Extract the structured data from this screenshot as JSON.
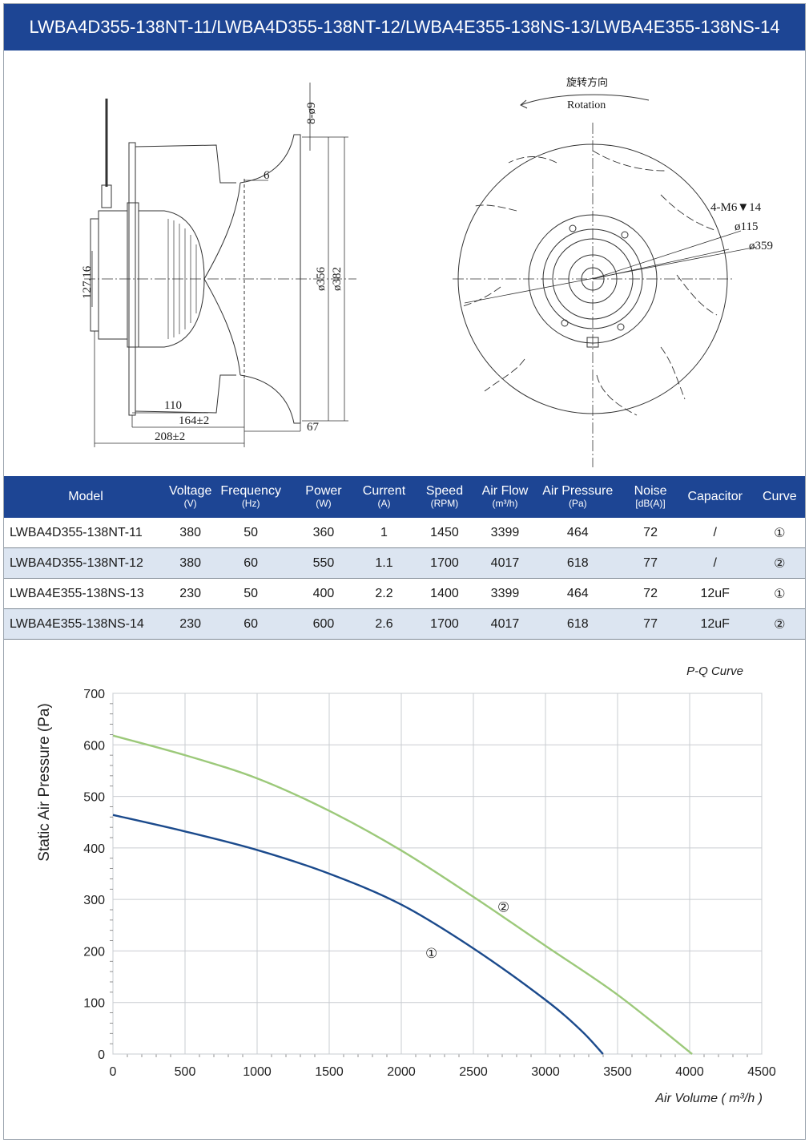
{
  "title": "LWBA4D355-138NT-11/LWBA4D355-138NT-12/LWBA4E355-138NS-13/LWBA4E355-138NS-14",
  "drawing": {
    "dim_holes": "8-ø9",
    "dim_6": "6",
    "dim_127": "127.16",
    "dim_356": "ø356",
    "dim_382": "ø382",
    "dim_110": "110",
    "dim_164": "164±2",
    "dim_208": "208±2",
    "dim_67": "67",
    "rotation_cn": "旋转方向",
    "rotation_en": "Rotation",
    "dim_m6": "4-M6▼14",
    "dim_115": "ø115",
    "dim_359": "ø359"
  },
  "table": {
    "headers": [
      {
        "label": "Model",
        "unit": ""
      },
      {
        "label": "Voltage",
        "unit": "(V)"
      },
      {
        "label": "Frequency",
        "unit": "(Hz)"
      },
      {
        "label": "Power",
        "unit": "(W)"
      },
      {
        "label": "Current",
        "unit": "(A)"
      },
      {
        "label": "Speed",
        "unit": "(RPM)"
      },
      {
        "label": "Air Flow",
        "unit": "(m³/h)"
      },
      {
        "label": "Air Pressure",
        "unit": "(Pa)"
      },
      {
        "label": "Noise",
        "unit": "[dB(A)]"
      },
      {
        "label": "Capacitor",
        "unit": ""
      },
      {
        "label": "Curve",
        "unit": ""
      }
    ],
    "rows": [
      [
        "LWBA4D355-138NT-11",
        "380",
        "50",
        "360",
        "1",
        "1450",
        "3399",
        "464",
        "72",
        "/",
        "①"
      ],
      [
        "LWBA4D355-138NT-12",
        "380",
        "60",
        "550",
        "1.1",
        "1700",
        "4017",
        "618",
        "77",
        "/",
        "②"
      ],
      [
        "LWBA4E355-138NS-13",
        "230",
        "50",
        "400",
        "2.2",
        "1400",
        "3399",
        "464",
        "72",
        "12uF",
        "①"
      ],
      [
        "LWBA4E355-138NS-14",
        "230",
        "60",
        "600",
        "2.6",
        "1700",
        "4017",
        "618",
        "77",
        "12uF",
        "②"
      ]
    ]
  },
  "chart_data": {
    "type": "line",
    "title": "P-Q Curve",
    "xlabel": "Air Volume ( m³/h )",
    "ylabel": "Static Air Pressure  (Pa)",
    "xlim": [
      0,
      4500
    ],
    "ylim": [
      0,
      700
    ],
    "xticks": [
      "0",
      "500",
      "1000",
      "1500",
      "2000",
      "2500",
      "3000",
      "3500",
      "4000",
      "4500"
    ],
    "yticks": [
      "0",
      "100",
      "200",
      "300",
      "400",
      "500",
      "600",
      "700"
    ],
    "grid": true,
    "series": [
      {
        "name": "①",
        "color": "#1b4a8c",
        "x": [
          0,
          500,
          1000,
          1500,
          2000,
          2500,
          3000,
          3250,
          3399
        ],
        "y": [
          464,
          432,
          396,
          350,
          290,
          205,
          105,
          45,
          0
        ]
      },
      {
        "name": "②",
        "color": "#9cc97a",
        "x": [
          0,
          500,
          1000,
          1500,
          2000,
          2500,
          3000,
          3500,
          4017
        ],
        "y": [
          618,
          580,
          535,
          472,
          395,
          305,
          210,
          115,
          0
        ]
      }
    ]
  }
}
